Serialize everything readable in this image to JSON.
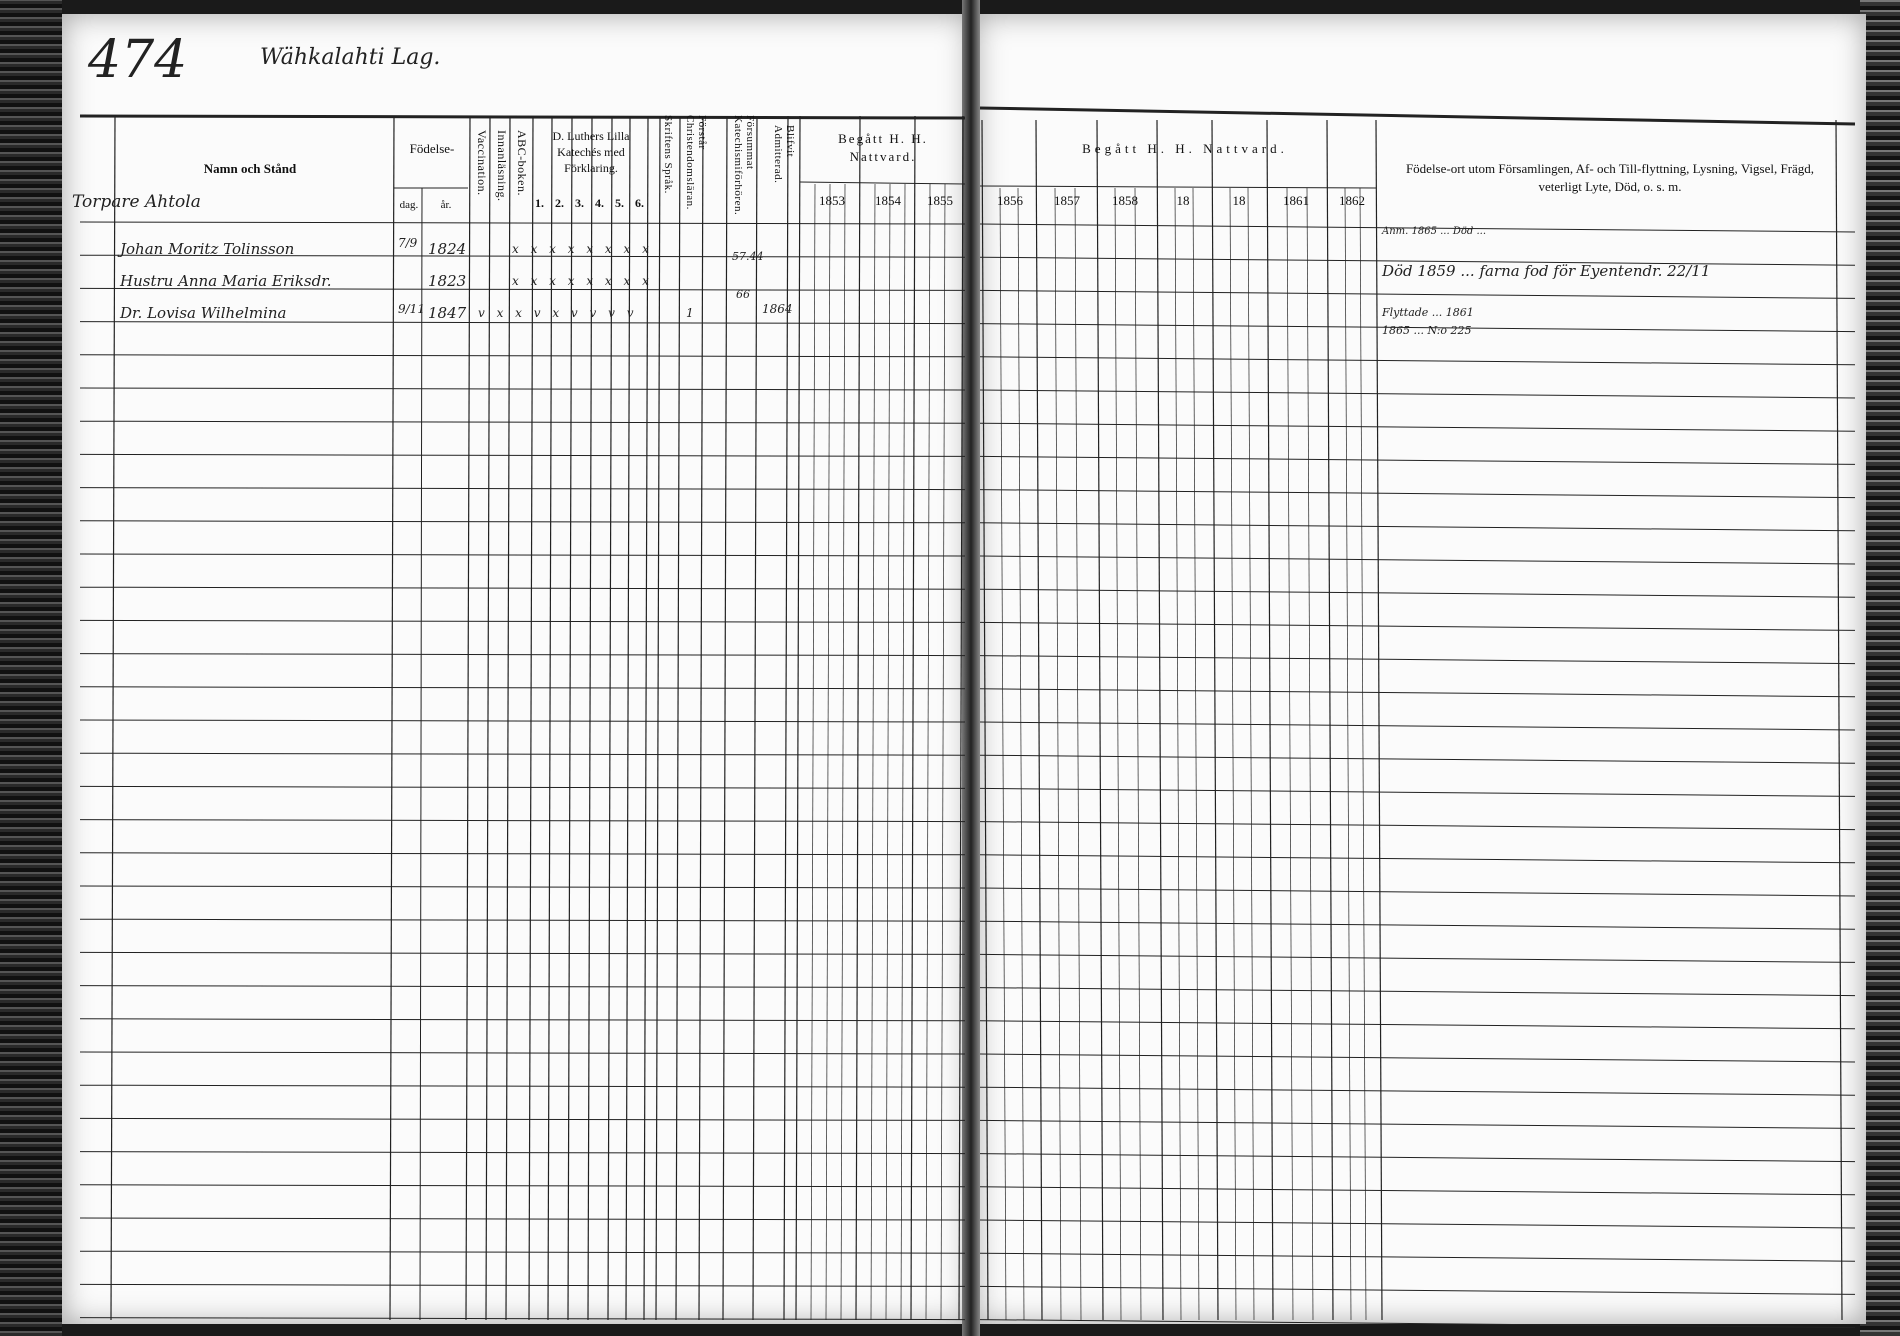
{
  "left_page": {
    "page_number": "474",
    "place_heading": "Wähkalahti Lag.",
    "headers": {
      "name": "Namn och Stånd",
      "birth": "Födelse-",
      "day": "dag.",
      "year": "år.",
      "vaccination": "Vaccination.",
      "innanlasning": "Innanläsning.",
      "abc_boken": "ABC-boken.",
      "luther": "D. Luthers Lilla Katechés med Förklaring.",
      "luther_parts": [
        "1.",
        "2.",
        "3.",
        "4.",
        "5.",
        "6."
      ],
      "skriftens_sprak": "Skriftens Språk.",
      "forstar": "Förstår Christendomsläran.",
      "forsummat": "Försummat Katechismiförhören.",
      "blifvit_admitterad": "Blifvit Admitterad.",
      "begatt": "Begått H. H. Nattvard.",
      "years": [
        "1853",
        "1854",
        "1855"
      ]
    },
    "rows": [
      {
        "name": "Torpare Ahtola",
        "sub": "",
        "day": "",
        "year": "",
        "marks": "",
        "note": ""
      },
      {
        "name": "Johan Moritz Tolinsson",
        "day": "7/9",
        "year": "1824",
        "marks": "x x x x x x x x",
        "note": "57.44"
      },
      {
        "name": "Hustru Anna Maria Eriksdr.",
        "day": "",
        "year": "1823",
        "marks": "x x x x x x x x",
        "note": "66"
      },
      {
        "name": "Dr. Lovisa Wilhelmina",
        "day": "9/11",
        "year": "1847",
        "marks": "v x x v x v v v v",
        "note": "1",
        "admitted": "1864"
      }
    ]
  },
  "right_page": {
    "headers": {
      "begatt": "Begått H. H. Nattvard.",
      "years": [
        "1856",
        "1857",
        "1858",
        "18",
        "18",
        "1861",
        "1862"
      ],
      "remarks": "Födelse-ort utom Församlingen, Af- och Till-flyttning, Lysning, Vigsel, Frägd, veterligt Lyte, Död, o. s. m."
    },
    "remarks": [
      "Anm. 1865 ... Död ...",
      "Död 1859 ... farna fod för Eyentendr. 22/11",
      "Flyttade ... 1861",
      "1865 ... N:o 225"
    ]
  }
}
